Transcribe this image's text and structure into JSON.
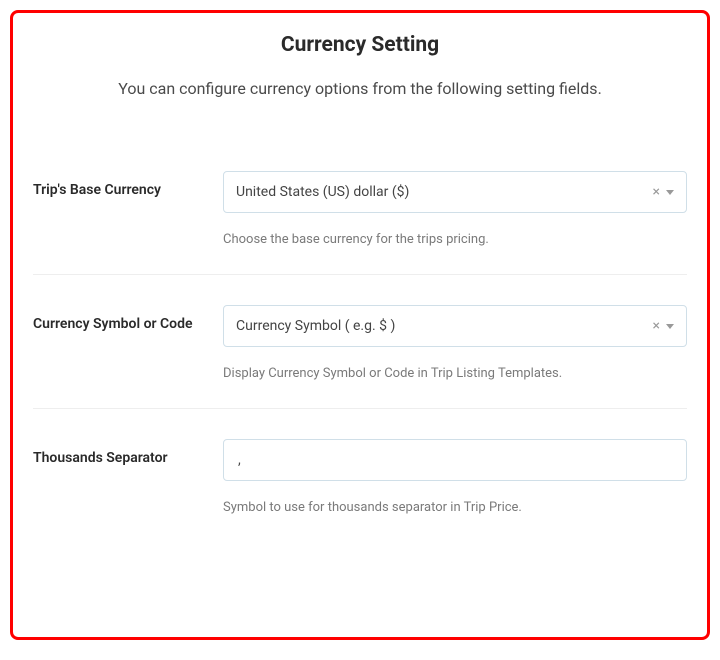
{
  "header": {
    "title": "Currency Setting",
    "subtitle": "You can configure currency options from the following setting fields."
  },
  "fields": {
    "baseCurrency": {
      "label": "Trip's Base Currency",
      "value": "United States (US) dollar ($)",
      "help": "Choose the base currency for the trips pricing."
    },
    "symbolOrCode": {
      "label": "Currency Symbol or Code",
      "value": "Currency Symbol ( e.g. $ )",
      "help": "Display Currency Symbol or Code in Trip Listing Templates."
    },
    "thousandsSeparator": {
      "label": "Thousands Separator",
      "value": ",",
      "help": "Symbol to use for thousands separator in Trip Price."
    }
  },
  "colors": {
    "border_highlight": "#ff0000",
    "text_primary": "#2a2a2a",
    "text_secondary": "#4a4a4a",
    "text_help": "#7a7a7a",
    "input_border": "#d0dfe8",
    "divider": "#eeeeee",
    "background": "#ffffff"
  }
}
